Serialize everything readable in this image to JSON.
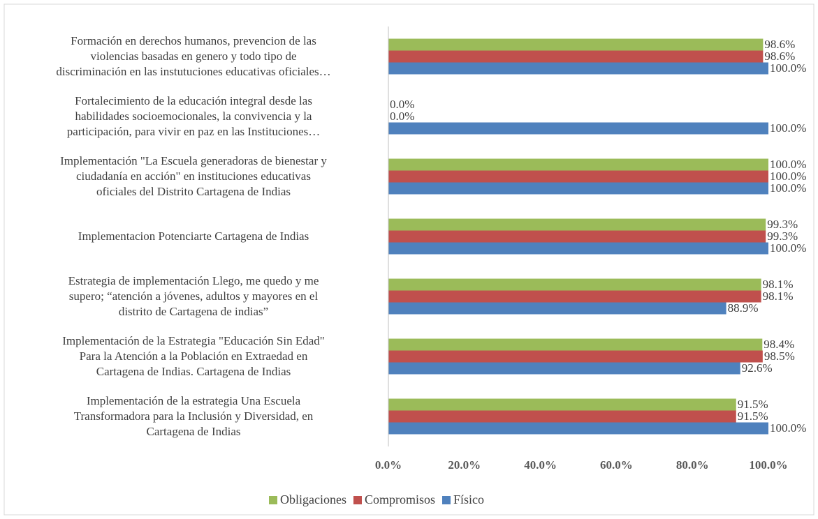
{
  "chart_data": {
    "type": "bar",
    "orientation": "horizontal",
    "categories": [
      "Formación en derechos humanos, prevencion de las\nviolencias basadas en genero y todo tipo de\ndiscriminación en las instutuciones educativas oficiales…",
      "Fortalecimiento de la educación integral desde las\nhabilidades socioemocionales, la convivencia y la\nparticipación, para vivir en paz en las Instituciones…",
      "Implementación \"La Escuela generadoras de bienestar y\nciudadanía en acción\" en instituciones educativas\noficiales del Distrito Cartagena de Indias",
      "Implementacion Potenciarte Cartagena de Indias",
      "Estrategia de implementación Llego, me quedo y me\nsupero; “atención a jóvenes, adultos y mayores en el\ndistrito de Cartagena de indias”",
      "Implementación de la Estrategia \"Educación Sin Edad\"\nPara la Atención a la Población en Extraedad en\nCartagena de Indias. Cartagena de Indias",
      "Implementación de la estrategia Una Escuela\nTransformadora para la Inclusión y Diversidad, en\nCartagena de Indias"
    ],
    "series": [
      {
        "name": "Obligaciones",
        "color": "#9bbb59",
        "values": [
          98.6,
          0,
          100,
          99.3,
          98.1,
          98.4,
          91.5
        ],
        "value_labels": [
          "98.6%",
          "0.0%",
          "100.0%",
          "99.3%",
          "98.1%",
          "98.4%",
          "91.5%"
        ]
      },
      {
        "name": "Compromisos",
        "color": "#c0504d",
        "values": [
          98.6,
          0,
          100,
          99.3,
          98.1,
          98.5,
          91.5
        ],
        "value_labels": [
          "98.6%",
          "0.0%",
          "100.0%",
          "99.3%",
          "98.1%",
          "98.5%",
          "91.5%"
        ]
      },
      {
        "name": "Físico",
        "color": "#4f81bd",
        "values": [
          100,
          100,
          100,
          100,
          88.9,
          92.6,
          100
        ],
        "value_labels": [
          "100.0%",
          "100.0%",
          "100.0%",
          "100.0%",
          "88.9%",
          "92.6%",
          "100.0%"
        ]
      }
    ],
    "xlim": [
      0,
      100
    ],
    "xticks": [
      {
        "value": 0,
        "label": "0.0%"
      },
      {
        "value": 20,
        "label": "20.0%"
      },
      {
        "value": 40,
        "label": "40.0%"
      },
      {
        "value": 60,
        "label": "60.0%"
      },
      {
        "value": 80,
        "label": "80.0%"
      },
      {
        "value": 100,
        "label": "100.0%"
      }
    ],
    "grid": false,
    "legend": "bottom"
  }
}
